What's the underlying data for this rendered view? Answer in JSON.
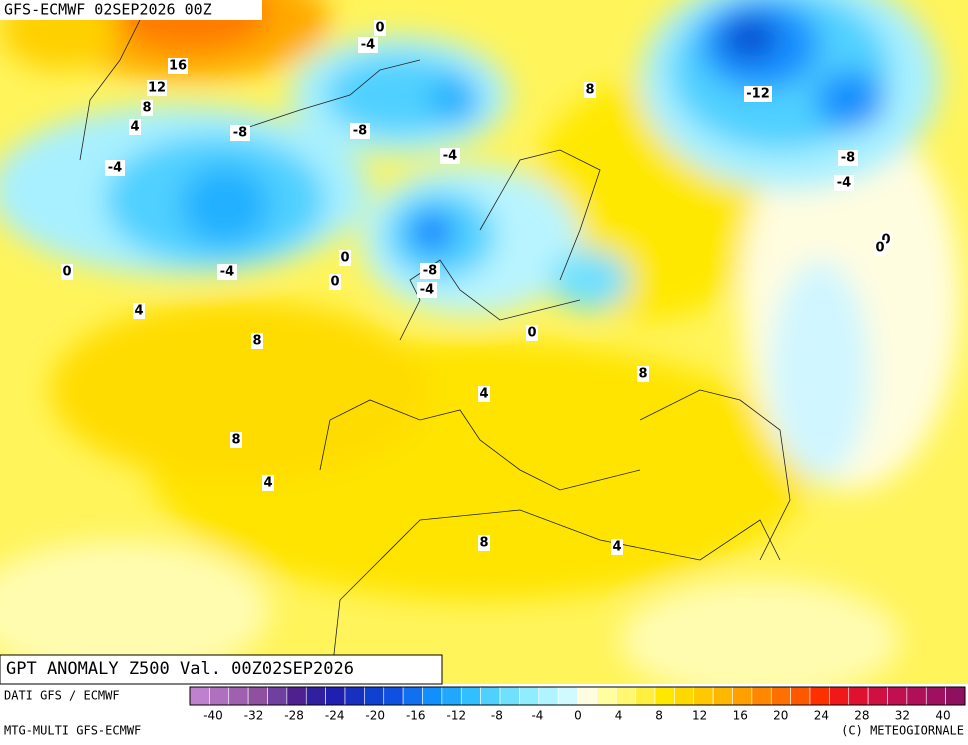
{
  "header": {
    "title": "GFS-ECMWF 02SEP2026 00Z"
  },
  "footer": {
    "title": "GPT ANOMALY Z500 Val. 00Z02SEP2026",
    "source": "DATI GFS / ECMWF",
    "model": "MTG-MULTI GFS-ECMWF",
    "copyright": "(C) METEOGIORNALE"
  },
  "contour_labels": [
    0,
    -4,
    16,
    12,
    8,
    4,
    -8,
    -8,
    -4,
    8,
    -12,
    -8,
    -4,
    -4,
    0,
    -4,
    0,
    0,
    -8,
    -4,
    0,
    0,
    4,
    8,
    0,
    8,
    4,
    8,
    4,
    8,
    4
  ],
  "colorbar": {
    "labels": [
      -40,
      -32,
      -28,
      -24,
      -20,
      -16,
      -12,
      -8,
      -4,
      0,
      4,
      8,
      12,
      16,
      20,
      24,
      28,
      32,
      40
    ],
    "colors": [
      "#c080d0",
      "#b070c0",
      "#a060b0",
      "#9050a0",
      "#7040a0",
      "#502090",
      "#3020a0",
      "#2020b0",
      "#1830c0",
      "#1040d0",
      "#1050e0",
      "#1070f0",
      "#1090ff",
      "#20a8ff",
      "#30c0ff",
      "#50d0ff",
      "#70e0ff",
      "#90ecff",
      "#b0f4ff",
      "#d0faff",
      "#fffde0",
      "#ffffa0",
      "#fff870",
      "#fff040",
      "#ffe800",
      "#ffd800",
      "#ffc800",
      "#ffb800",
      "#ffa000",
      "#ff8800",
      "#ff7000",
      "#ff5800",
      "#ff3000",
      "#f01818",
      "#e01030",
      "#d01040",
      "#c01050",
      "#b01058",
      "#a01060",
      "#901060"
    ]
  }
}
